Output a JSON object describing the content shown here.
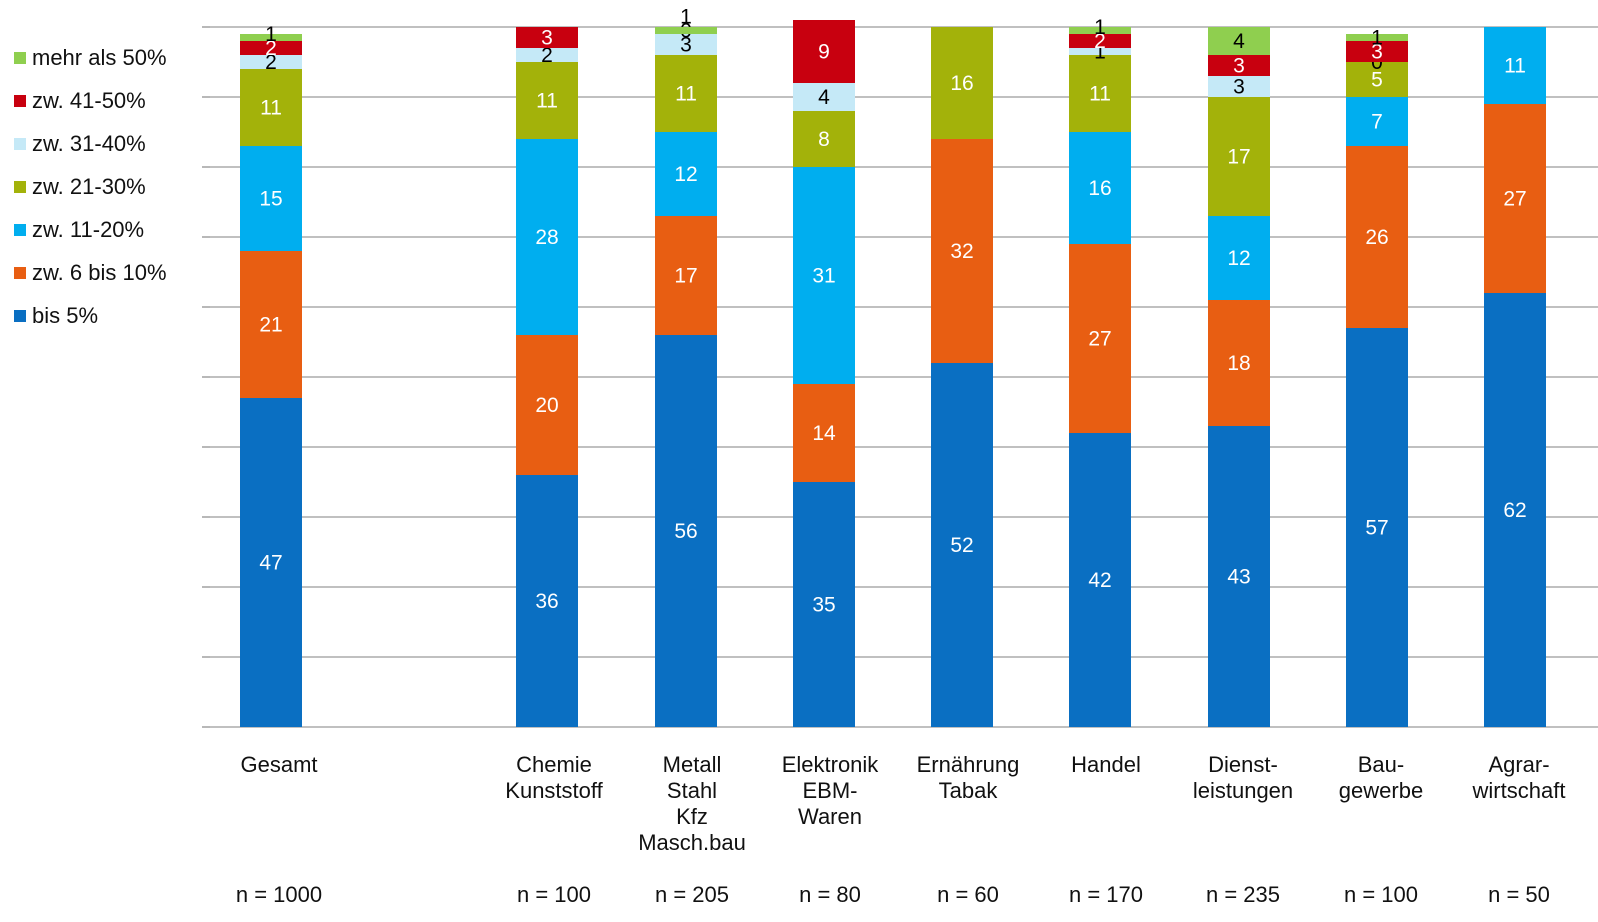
{
  "chart_data": {
    "type": "bar",
    "stacked": true,
    "ylim": [
      0,
      100
    ],
    "grid": true,
    "legend_position": "left",
    "categories": [
      {
        "lines": [
          "Gesamt"
        ],
        "n": "n = 1000"
      },
      {
        "lines": [
          "Chemie",
          "Kunststoff"
        ],
        "n": "n = 100"
      },
      {
        "lines": [
          "Metall",
          "Stahl",
          "Kfz",
          "Masch.bau"
        ],
        "n": "n = 205"
      },
      {
        "lines": [
          "Elektronik",
          "EBM-",
          "Waren"
        ],
        "n": "n = 80"
      },
      {
        "lines": [
          "Ernährung",
          "Tabak"
        ],
        "n": "n = 60"
      },
      {
        "lines": [
          "Handel"
        ],
        "n": "n = 170"
      },
      {
        "lines": [
          "Dienst-",
          "leistungen"
        ],
        "n": "n = 235"
      },
      {
        "lines": [
          "Bau-",
          "gewerbe"
        ],
        "n": "n = 100"
      },
      {
        "lines": [
          "Agrar-",
          "wirtschaft"
        ],
        "n": "n = 50"
      }
    ],
    "series": [
      {
        "name": "bis 5%",
        "color": "#0a6fc2",
        "label_color": "#ffffff",
        "values": [
          47,
          36,
          56,
          35,
          52,
          42,
          43,
          57,
          62
        ]
      },
      {
        "name": "zw. 6 bis 10%",
        "color": "#e85e12",
        "label_color": "#ffffff",
        "values": [
          21,
          20,
          17,
          14,
          32,
          27,
          18,
          26,
          27
        ]
      },
      {
        "name": "zw. 11-20%",
        "color": "#00aeef",
        "label_color": "#ffffff",
        "values": [
          15,
          28,
          12,
          31,
          0,
          16,
          12,
          7,
          11
        ]
      },
      {
        "name": "zw. 21-30%",
        "color": "#a3b20a",
        "label_color": "#ffffff",
        "values": [
          11,
          11,
          11,
          8,
          16,
          11,
          17,
          5,
          0
        ]
      },
      {
        "name": "zw. 31-40%",
        "color": "#c5e9f7",
        "label_color": "#000000",
        "values": [
          2,
          2,
          3,
          4,
          0,
          1,
          3,
          0,
          0
        ]
      },
      {
        "name": "zw. 41-50%",
        "color": "#c8000f",
        "label_color": "#ffffff",
        "values": [
          2,
          3,
          0,
          9,
          0,
          2,
          3,
          3,
          0
        ]
      },
      {
        "name": "mehr als 50%",
        "color": "#8fcf4f",
        "label_color": "#000000",
        "values": [
          1,
          0,
          1,
          0,
          0,
          1,
          4,
          1,
          0
        ]
      }
    ]
  }
}
